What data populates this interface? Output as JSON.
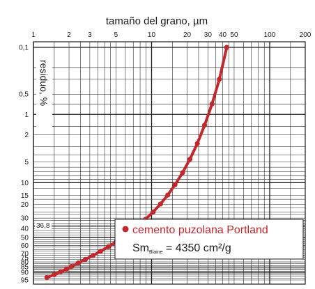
{
  "chart_data": {
    "type": "line",
    "title": "tamaño del grano, µm",
    "xlabel": "tamaño del grano, µm",
    "ylabel": "residuo, %",
    "x_scale": "log",
    "y_scale": "RRSB (Rosin-Rammler-Sperling-Bennett)",
    "xlim": [
      1,
      200
    ],
    "ylim": [
      0.1,
      95
    ],
    "x_ticks": [
      "1",
      "2",
      "3",
      "5",
      "10",
      "20",
      "30",
      "40",
      "50",
      "100",
      "200"
    ],
    "y_ticks": [
      "0,1",
      "0,5",
      "1",
      "2",
      "5",
      "10",
      "15",
      "20",
      "30",
      "40",
      "50",
      "60",
      "70",
      "75",
      "80",
      "85",
      "90",
      "95"
    ],
    "grid": true,
    "reference_marker": {
      "label": "36,8",
      "y": 36.8
    },
    "legend_position": "bottom-right",
    "series": [
      {
        "name": "cemento puzolana Portland",
        "color": "#c0282d",
        "x": [
          1.3,
          1.5,
          1.7,
          1.9,
          2.1,
          2.4,
          2.75,
          3.2,
          3.7,
          4.3,
          5.0,
          5.8,
          6.7,
          7.7,
          8.9,
          10.3,
          11.9,
          13.7,
          15.8,
          18.3,
          21.1,
          24.4,
          28.1,
          32.5,
          37.5,
          43.3,
          52.0
        ],
        "y": [
          93.6,
          91.8,
          89.6,
          87.3,
          84.7,
          81.2,
          77.2,
          72.4,
          67.3,
          61.6,
          55.7,
          49.6,
          43.3,
          37.2,
          31.0,
          25.1,
          19.7,
          14.9,
          10.7,
          7.2,
          4.6,
          2.7,
          1.45,
          0.7,
          0.3,
          0.1,
          0.02
        ]
      }
    ],
    "legend": {
      "series_label": "cemento puzolana Portland",
      "annotation_prefix": "Sm",
      "annotation_subscript": "Blaine",
      "annotation_value": " = 4350 cm²/g"
    }
  },
  "colors": {
    "grid": "#1a1a1a",
    "series": "#c0282d",
    "background": "#ffffff"
  }
}
